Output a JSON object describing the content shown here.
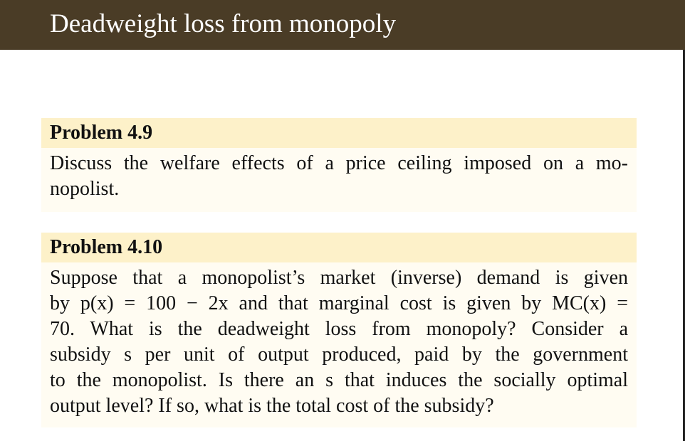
{
  "header": {
    "title": "Deadweight loss from monopoly"
  },
  "problems": [
    {
      "heading": "Problem 4.9",
      "lines": [
        "Discuss the welfare effects of a price ceiling imposed on a mo-",
        "nopolist."
      ]
    },
    {
      "heading": "Problem 4.10",
      "lines": [
        "Suppose that a monopolist’s market (inverse) demand is given",
        "by p(x) = 100 − 2x and that marginal cost is given by MC(x) =",
        "70. What is the deadweight loss from monopoly? Consider a",
        "subsidy s per unit of output produced, paid by the government",
        "to the monopolist. Is there an s that induces the socially optimal",
        "output level? If so, what is the total cost of the subsidy?"
      ]
    }
  ],
  "colors": {
    "title_bar": "#4a3c26",
    "problem_heading_bg": "#fdf1c9",
    "problem_body_bg": "#fffcf2"
  }
}
